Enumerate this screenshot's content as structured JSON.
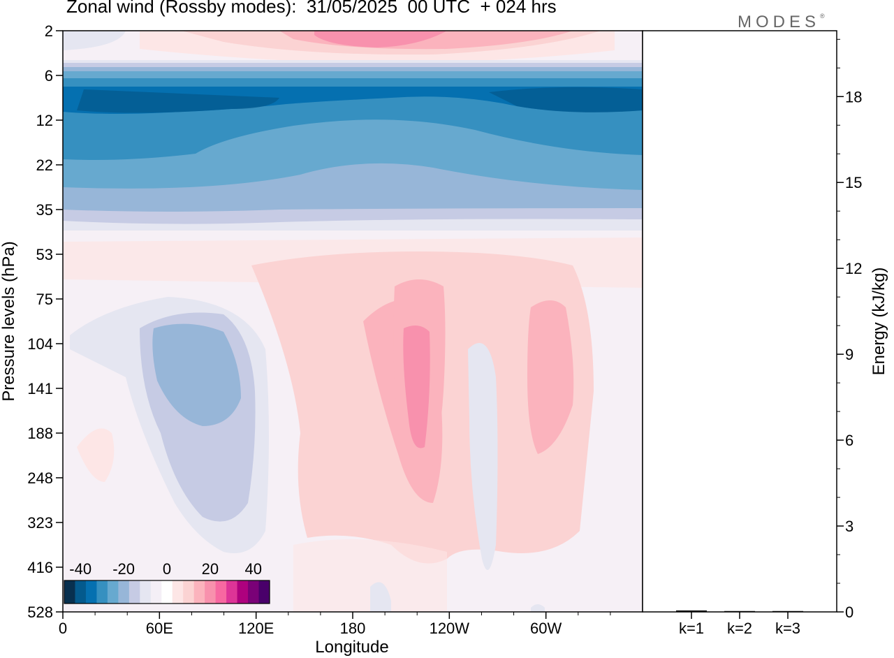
{
  "header": {
    "title": "Zonal wind (Rossby modes):  31/05/2025  00 UTC  + 024 hrs",
    "logo": "MODES",
    "logo_mark": "®"
  },
  "chart_data": [
    {
      "type": "heatmap",
      "title": "Zonal wind (Rossby modes):  31/05/2025  00 UTC  + 024 hrs",
      "xlabel": "Longitude",
      "ylabel": "Pressure levels (hPa)",
      "x_ticks": [
        "0",
        "60E",
        "120E",
        "180",
        "120W",
        "60W"
      ],
      "x_tick_values": [
        0,
        60,
        120,
        180,
        240,
        300
      ],
      "xlim": [
        0,
        360
      ],
      "y_ticks": [
        "2",
        "6",
        "12",
        "22",
        "35",
        "53",
        "75",
        "104",
        "141",
        "188",
        "248",
        "323",
        "416",
        "528"
      ],
      "y_scale": "pressure levels (top 2 hPa to bottom 528 hPa, one tick per model level)",
      "colorbar": {
        "labels": [
          "-40",
          "-20",
          "0",
          "20",
          "40"
        ],
        "label_values": [
          -40,
          -20,
          0,
          20,
          40
        ],
        "colors": [
          "#08304f",
          "#045a8d",
          "#0570b0",
          "#3690c0",
          "#67a9cf",
          "#97b6d8",
          "#c6cbe4",
          "#e5e6f1",
          "#f4eff6",
          "#ffffff",
          "#fde6e6",
          "#fbd3d3",
          "#fbb3bd",
          "#f891ad",
          "#f768a1",
          "#dd3497",
          "#ae017e",
          "#7a0177",
          "#49006a"
        ],
        "placement": "bottom-left"
      },
      "bands": [
        {
          "level": "2",
          "description": "weak easterlies west, westerlies +5 to +15 east of 150E",
          "value": 8
        },
        {
          "level": "6-12",
          "description": "strong easterlies",
          "value": -30
        },
        {
          "level": "12-22",
          "description": "easterlies",
          "value": -20
        },
        {
          "level": "35",
          "description": "weak easterlies",
          "value": -5
        },
        {
          "level": "53-75",
          "description": "weak westerlies",
          "value": 3
        },
        {
          "level": "104-188",
          "lon_center": 70,
          "value": -15
        },
        {
          "level": "104-188",
          "lon_center": 210,
          "value": 15
        },
        {
          "level": "104-188",
          "lon_center": 290,
          "value": 10
        },
        {
          "level": "141-248",
          "lon_center": 250,
          "value": -5
        }
      ]
    },
    {
      "type": "bar",
      "categories": [
        "k=1",
        "k=2",
        "k=3"
      ],
      "values": [
        0.05,
        0.03,
        0.03
      ],
      "ylabel": "Energy (kJ/kg)",
      "y_ticks": [
        "0",
        "3",
        "6",
        "9",
        "12",
        "15",
        "18"
      ],
      "y_tick_values": [
        0,
        3,
        6,
        9,
        12,
        15,
        18
      ],
      "ylim": [
        0,
        20.3
      ]
    }
  ]
}
